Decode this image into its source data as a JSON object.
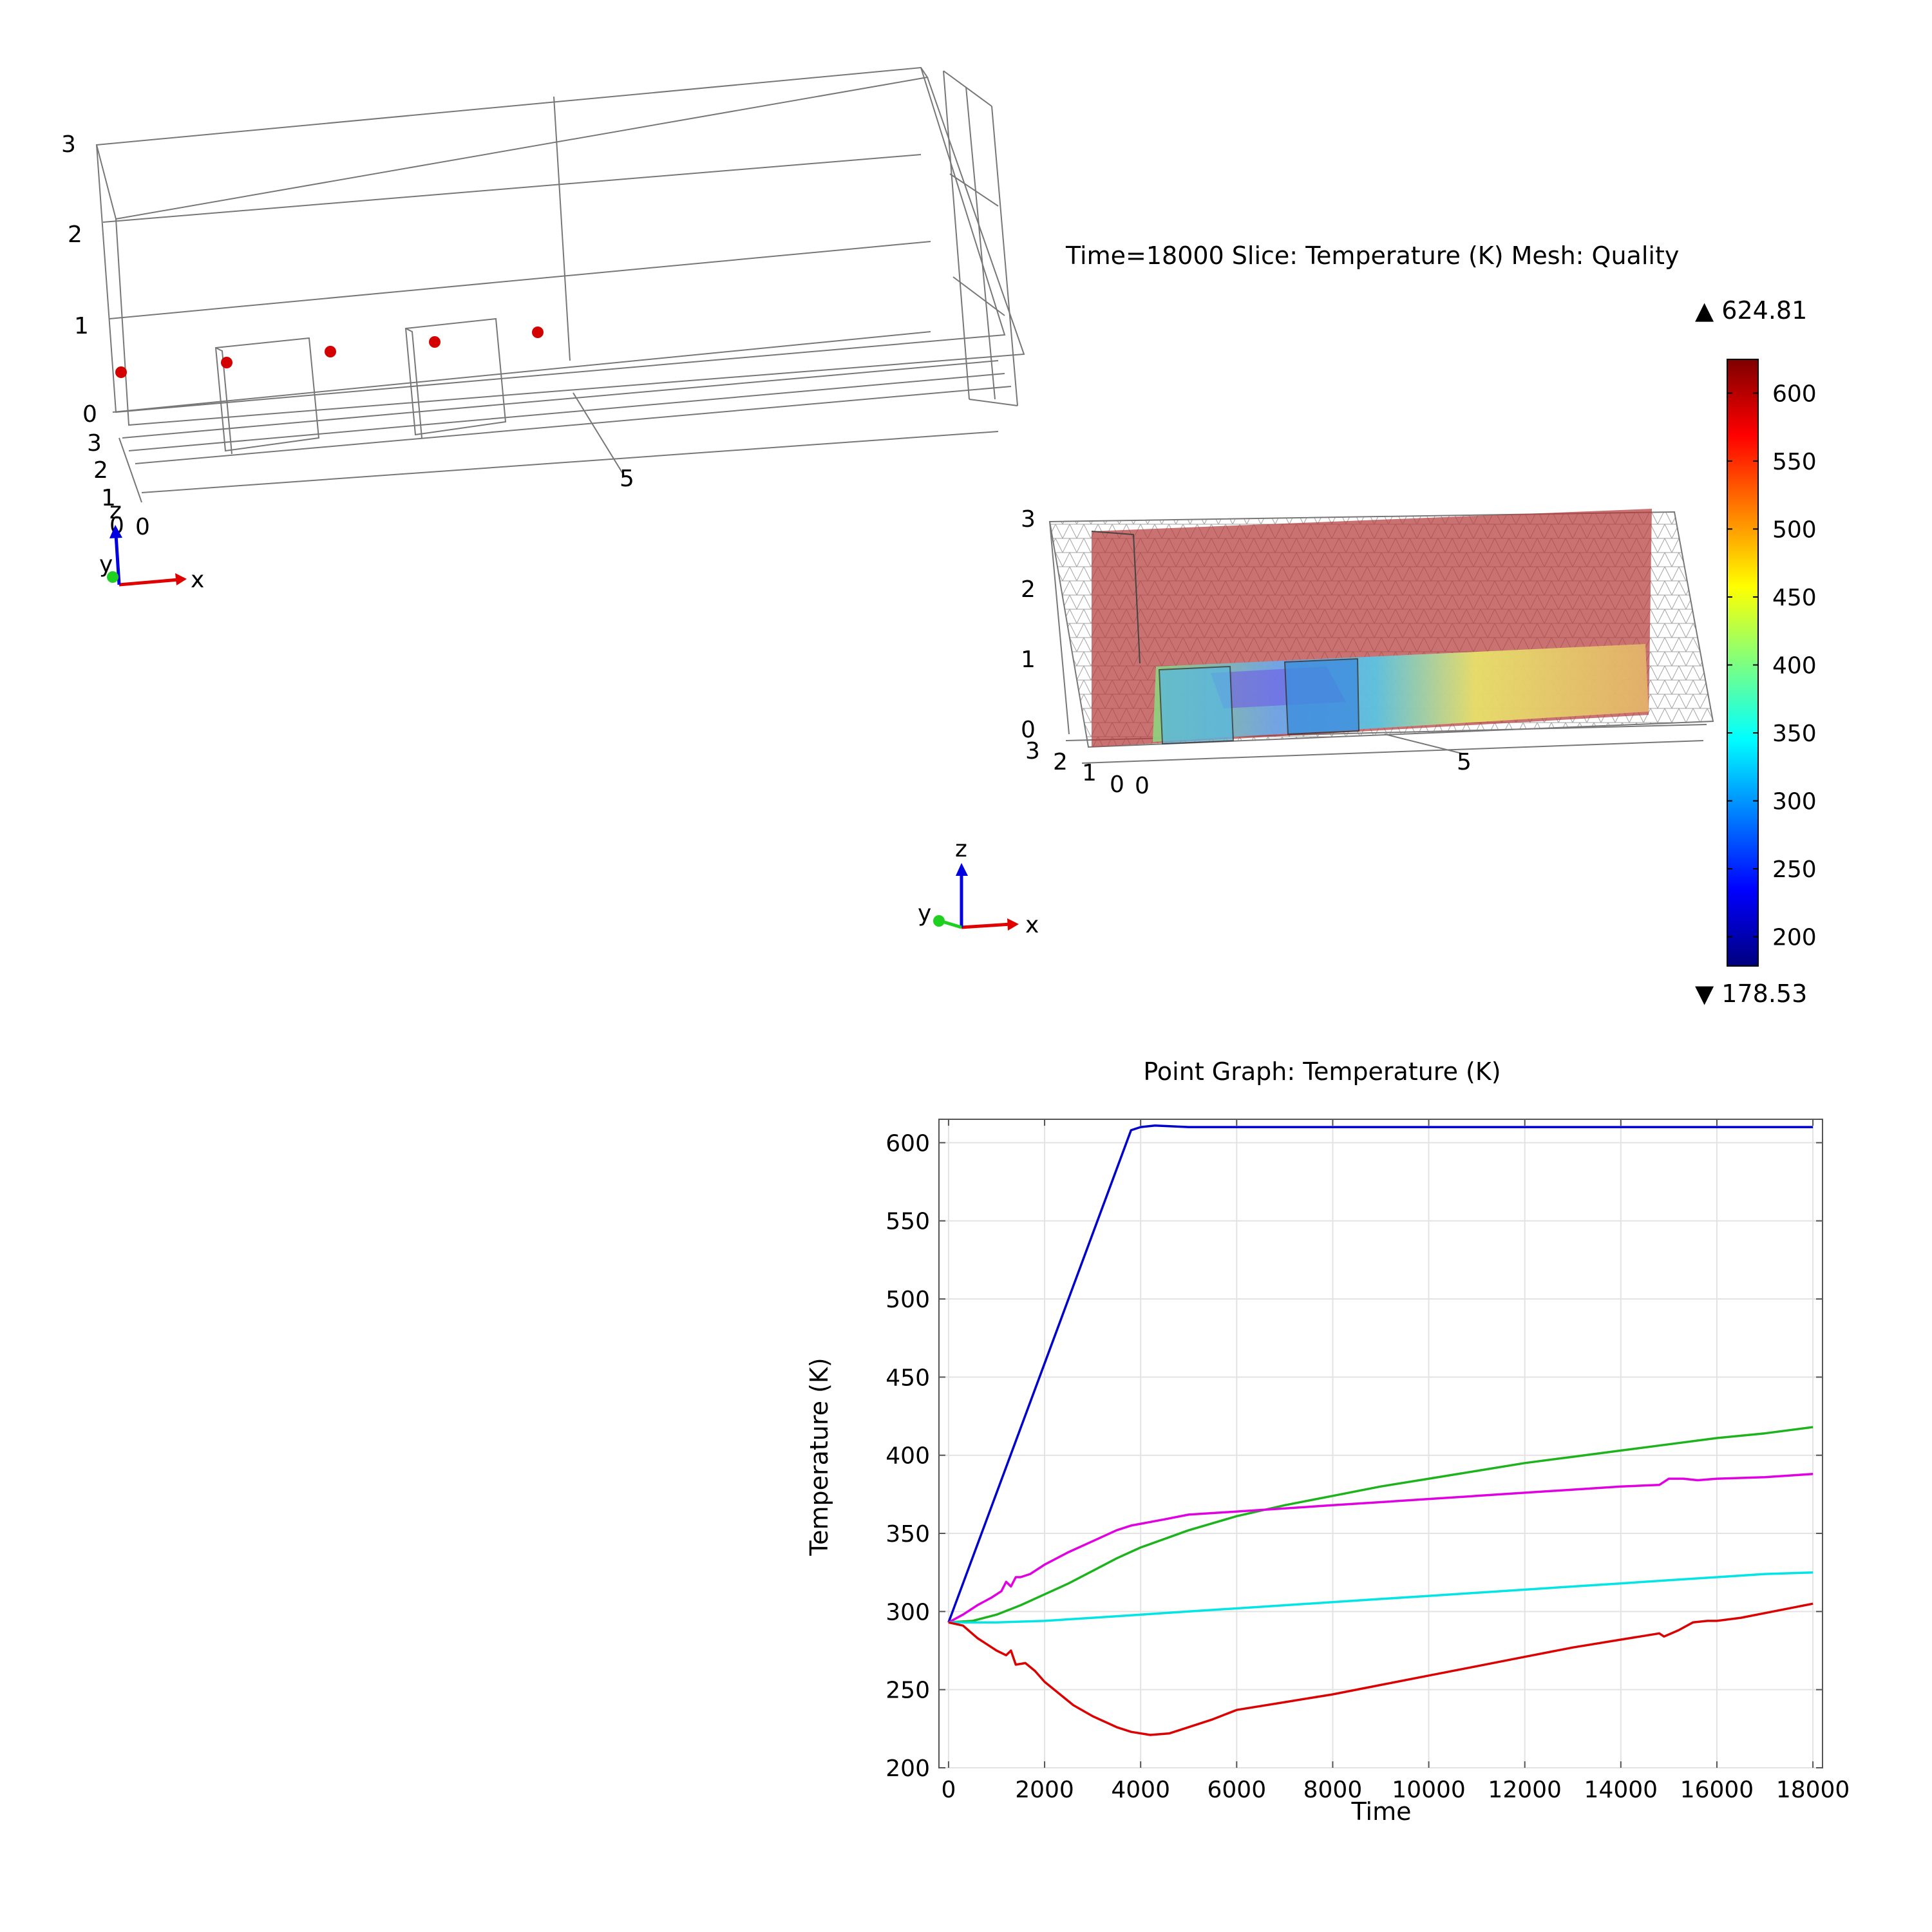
{
  "geometry_view": {
    "axis_ticks_vertical": [
      "3",
      "2",
      "1",
      "0"
    ],
    "axis_ticks_depth": [
      "3",
      "2",
      "1",
      "0"
    ],
    "axis_tick_x": [
      "0",
      "5"
    ],
    "triad": {
      "x": "x",
      "y": "y",
      "z": "z"
    },
    "probe_color": "#d40000"
  },
  "slice_view": {
    "title": "Time=18000   Slice: Temperature (K) Mesh: Quality",
    "axis_ticks_vertical": [
      "3",
      "2",
      "1",
      "0"
    ],
    "axis_ticks_depth": [
      "3",
      "2",
      "1",
      "0"
    ],
    "axis_tick_x": [
      "0",
      "5"
    ],
    "triad": {
      "x": "x",
      "y": "y",
      "z": "z"
    },
    "colorbar": {
      "max_label": "▲ 624.81",
      "min_label": "▼ 178.53",
      "max": 624.81,
      "min": 178.53,
      "ticks": [
        "600",
        "550",
        "500",
        "450",
        "400",
        "350",
        "300",
        "250",
        "200"
      ],
      "colors": [
        "#00007f",
        "#0000ff",
        "#007fff",
        "#00ffff",
        "#7fff7f",
        "#ffff00",
        "#ff7f00",
        "#ff0000",
        "#7f0000"
      ]
    }
  },
  "chart_data": {
    "type": "line",
    "title": "Point Graph: Temperature (K)",
    "xlabel": "Time",
    "ylabel": "Temperature (K)",
    "xlim": [
      0,
      18000
    ],
    "ylim": [
      200,
      615
    ],
    "xticks": [
      "0",
      "2000",
      "4000",
      "6000",
      "8000",
      "10000",
      "12000",
      "14000",
      "16000",
      "18000"
    ],
    "yticks": [
      "200",
      "250",
      "300",
      "350",
      "400",
      "450",
      "500",
      "550",
      "600"
    ],
    "grid": true,
    "series": [
      {
        "color": "#0000cc",
        "x": [
          0,
          3800,
          4000,
          4300,
          5000,
          6000,
          8000,
          10000,
          12000,
          14000,
          16000,
          18000
        ],
        "y": [
          293,
          608,
          610,
          611,
          610,
          610,
          610,
          610,
          610,
          610,
          610,
          610
        ]
      },
      {
        "color": "#1db31d",
        "x": [
          0,
          500,
          1000,
          1500,
          2000,
          2500,
          3000,
          3500,
          4000,
          5000,
          6000,
          7000,
          8000,
          9000,
          10000,
          11000,
          12000,
          13000,
          14000,
          15000,
          16000,
          17000,
          18000
        ],
        "y": [
          293,
          294,
          298,
          304,
          311,
          318,
          326,
          334,
          341,
          352,
          361,
          368,
          374,
          380,
          385,
          390,
          395,
          399,
          403,
          407,
          411,
          414,
          418
        ]
      },
      {
        "color": "#e100e1",
        "x": [
          0,
          300,
          600,
          900,
          1100,
          1200,
          1300,
          1400,
          1500,
          1700,
          2000,
          2500,
          3000,
          3500,
          3800,
          4500,
          5000,
          6000,
          7000,
          8000,
          9000,
          10000,
          11000,
          12000,
          13000,
          14000,
          14800,
          15000,
          15300,
          15600,
          16000,
          17000,
          18000
        ],
        "y": [
          293,
          298,
          304,
          309,
          313,
          319,
          316,
          322,
          322,
          324,
          330,
          338,
          345,
          352,
          355,
          359,
          362,
          364,
          366,
          368,
          370,
          372,
          374,
          376,
          378,
          380,
          381,
          385,
          385,
          384,
          385,
          386,
          388
        ]
      },
      {
        "color": "#00e5e5",
        "x": [
          0,
          1000,
          2000,
          3000,
          4000,
          5000,
          6000,
          7000,
          8000,
          9000,
          10000,
          11000,
          12000,
          13000,
          14000,
          15000,
          16000,
          17000,
          18000
        ],
        "y": [
          293,
          293,
          294,
          296,
          298,
          300,
          302,
          304,
          306,
          308,
          310,
          312,
          314,
          316,
          318,
          320,
          322,
          324,
          325
        ]
      },
      {
        "color": "#dd0000",
        "x": [
          0,
          300,
          600,
          800,
          1000,
          1200,
          1300,
          1400,
          1600,
          1800,
          2000,
          2600,
          3000,
          3500,
          3800,
          4200,
          4600,
          5000,
          5500,
          6000,
          7000,
          8000,
          9000,
          10000,
          11000,
          12000,
          13000,
          14000,
          14800,
          14900,
          15200,
          15500,
          15800,
          16000,
          16500,
          17000,
          18000
        ],
        "y": [
          293,
          291,
          283,
          279,
          275,
          272,
          275,
          266,
          267,
          262,
          255,
          240,
          233,
          226,
          223,
          221,
          222,
          226,
          231,
          237,
          242,
          247,
          253,
          259,
          265,
          271,
          277,
          282,
          286,
          284,
          288,
          293,
          294,
          294,
          296,
          299,
          305
        ]
      }
    ]
  }
}
